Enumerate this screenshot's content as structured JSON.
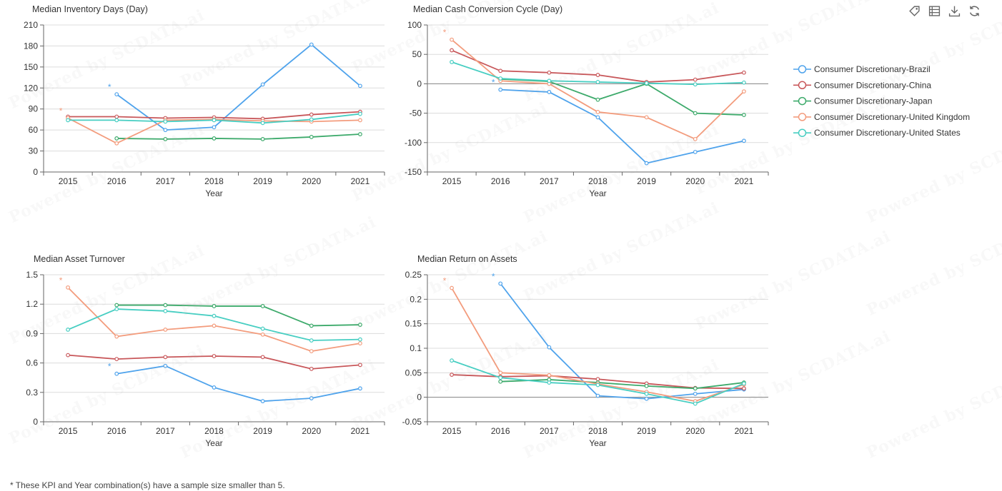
{
  "toolbar": {
    "items": [
      {
        "name": "tag-icon"
      },
      {
        "name": "data-view-icon"
      },
      {
        "name": "download-icon"
      },
      {
        "name": "refresh-icon"
      }
    ]
  },
  "footnote": "* These KPI and Year combination(s) have a sample size smaller than 5.",
  "watermark": "Powered by SCDATA.ai",
  "chart_data": [
    {
      "type": "line",
      "title": "Median Inventory Days (Day)",
      "xlabel": "Year",
      "ylabel": "",
      "categories": [
        "2015",
        "2016",
        "2017",
        "2018",
        "2019",
        "2020",
        "2021"
      ],
      "ylim": [
        0,
        210
      ],
      "yticks": [
        0,
        30,
        60,
        90,
        120,
        150,
        180,
        210
      ],
      "grid": true,
      "series": [
        {
          "name": "Consumer Discretionary-Brazil",
          "values": [
            null,
            111,
            60,
            64,
            125,
            182,
            123
          ],
          "small_sample": [
            false,
            true,
            false,
            false,
            false,
            false,
            false
          ]
        },
        {
          "name": "Consumer Discretionary-China",
          "values": [
            79,
            79,
            77,
            78,
            76,
            82,
            86
          ],
          "small_sample": [
            false,
            false,
            false,
            false,
            false,
            false,
            false
          ]
        },
        {
          "name": "Consumer Discretionary-Japan",
          "values": [
            null,
            48,
            47,
            48,
            47,
            50,
            54
          ],
          "small_sample": [
            false,
            false,
            false,
            false,
            false,
            false,
            false
          ]
        },
        {
          "name": "Consumer Discretionary-United Kingdom",
          "values": [
            77,
            41,
            74,
            75,
            73,
            72,
            74
          ],
          "small_sample": [
            true,
            false,
            false,
            false,
            false,
            false,
            false
          ]
        },
        {
          "name": "Consumer Discretionary-United States",
          "values": [
            74,
            74,
            72,
            74,
            70,
            75,
            83
          ],
          "small_sample": [
            false,
            false,
            false,
            false,
            false,
            false,
            false
          ]
        }
      ]
    },
    {
      "type": "line",
      "title": "Median Cash Conversion Cycle (Day)",
      "xlabel": "Year",
      "ylabel": "",
      "categories": [
        "2015",
        "2016",
        "2017",
        "2018",
        "2019",
        "2020",
        "2021"
      ],
      "ylim": [
        -150,
        100
      ],
      "yticks": [
        -150,
        -100,
        -50,
        0,
        50,
        100
      ],
      "grid": true,
      "series": [
        {
          "name": "Consumer Discretionary-Brazil",
          "values": [
            null,
            -10,
            -14,
            -57,
            -135,
            -116,
            -97
          ],
          "small_sample": [
            false,
            true,
            false,
            false,
            false,
            false,
            false
          ]
        },
        {
          "name": "Consumer Discretionary-China",
          "values": [
            57,
            22,
            19,
            15,
            3,
            7,
            19
          ],
          "small_sample": [
            false,
            false,
            false,
            false,
            false,
            false,
            false
          ]
        },
        {
          "name": "Consumer Discretionary-Japan",
          "values": [
            null,
            8,
            4,
            -27,
            0,
            -50,
            -53
          ],
          "small_sample": [
            false,
            false,
            false,
            false,
            false,
            false,
            false
          ]
        },
        {
          "name": "Consumer Discretionary-United Kingdom",
          "values": [
            75,
            5,
            0,
            -48,
            -57,
            -94,
            -13
          ],
          "small_sample": [
            true,
            false,
            false,
            false,
            false,
            false,
            false
          ]
        },
        {
          "name": "Consumer Discretionary-United States",
          "values": [
            37,
            9,
            5,
            3,
            1,
            -1,
            2
          ],
          "small_sample": [
            false,
            false,
            false,
            false,
            false,
            false,
            false
          ]
        }
      ]
    },
    {
      "type": "line",
      "title": "Median Asset Turnover",
      "xlabel": "Year",
      "ylabel": "",
      "categories": [
        "2015",
        "2016",
        "2017",
        "2018",
        "2019",
        "2020",
        "2021"
      ],
      "ylim": [
        0,
        1.5
      ],
      "yticks": [
        0,
        0.3,
        0.6,
        0.9,
        1.2,
        1.5
      ],
      "grid": true,
      "series": [
        {
          "name": "Consumer Discretionary-Brazil",
          "values": [
            null,
            0.49,
            0.57,
            0.35,
            0.21,
            0.24,
            0.34
          ],
          "small_sample": [
            false,
            true,
            false,
            false,
            false,
            false,
            false
          ]
        },
        {
          "name": "Consumer Discretionary-China",
          "values": [
            0.68,
            0.64,
            0.66,
            0.67,
            0.66,
            0.54,
            0.58
          ],
          "small_sample": [
            false,
            false,
            false,
            false,
            false,
            false,
            false
          ]
        },
        {
          "name": "Consumer Discretionary-Japan",
          "values": [
            null,
            1.19,
            1.19,
            1.18,
            1.18,
            0.98,
            0.99
          ],
          "small_sample": [
            false,
            false,
            false,
            false,
            false,
            false,
            false
          ]
        },
        {
          "name": "Consumer Discretionary-United Kingdom",
          "values": [
            1.37,
            0.87,
            0.94,
            0.98,
            0.89,
            0.72,
            0.8
          ],
          "small_sample": [
            true,
            false,
            false,
            false,
            false,
            false,
            false
          ]
        },
        {
          "name": "Consumer Discretionary-United States",
          "values": [
            0.94,
            1.15,
            1.13,
            1.08,
            0.95,
            0.83,
            0.84
          ],
          "small_sample": [
            false,
            false,
            false,
            false,
            false,
            false,
            false
          ]
        }
      ]
    },
    {
      "type": "line",
      "title": "Median Return on Assets",
      "xlabel": "Year",
      "ylabel": "",
      "categories": [
        "2015",
        "2016",
        "2017",
        "2018",
        "2019",
        "2020",
        "2021"
      ],
      "ylim": [
        -0.05,
        0.25
      ],
      "yticks": [
        -0.05,
        0,
        0.05,
        0.1,
        0.15,
        0.2,
        0.25
      ],
      "grid": true,
      "series": [
        {
          "name": "Consumer Discretionary-Brazil",
          "values": [
            null,
            0.232,
            0.102,
            0.003,
            -0.003,
            0.007,
            0.016
          ],
          "small_sample": [
            false,
            true,
            false,
            false,
            false,
            false,
            false
          ]
        },
        {
          "name": "Consumer Discretionary-China",
          "values": [
            0.046,
            0.042,
            0.044,
            0.037,
            0.028,
            0.019,
            0.018
          ],
          "small_sample": [
            false,
            false,
            false,
            false,
            false,
            false,
            false
          ]
        },
        {
          "name": "Consumer Discretionary-Japan",
          "values": [
            null,
            0.032,
            0.036,
            0.03,
            0.023,
            0.018,
            0.03
          ],
          "small_sample": [
            false,
            false,
            false,
            false,
            false,
            false,
            false
          ]
        },
        {
          "name": "Consumer Discretionary-United Kingdom",
          "values": [
            0.223,
            0.05,
            0.045,
            0.027,
            0.011,
            -0.008,
            0.026
          ],
          "small_sample": [
            true,
            false,
            false,
            false,
            false,
            false,
            false
          ]
        },
        {
          "name": "Consumer Discretionary-United States",
          "values": [
            0.075,
            0.04,
            0.03,
            0.025,
            0.007,
            -0.013,
            0.028
          ],
          "small_sample": [
            false,
            false,
            false,
            false,
            false,
            false,
            false
          ]
        }
      ]
    }
  ],
  "legend": {
    "placement": "right",
    "items": [
      {
        "name": "Consumer Discretionary-Brazil",
        "color": "#4fa3ec"
      },
      {
        "name": "Consumer Discretionary-China",
        "color": "#c8575a"
      },
      {
        "name": "Consumer Discretionary-Japan",
        "color": "#3daa6b"
      },
      {
        "name": "Consumer Discretionary-United Kingdom",
        "color": "#f39c7d"
      },
      {
        "name": "Consumer Discretionary-United States",
        "color": "#47cec2"
      }
    ]
  }
}
